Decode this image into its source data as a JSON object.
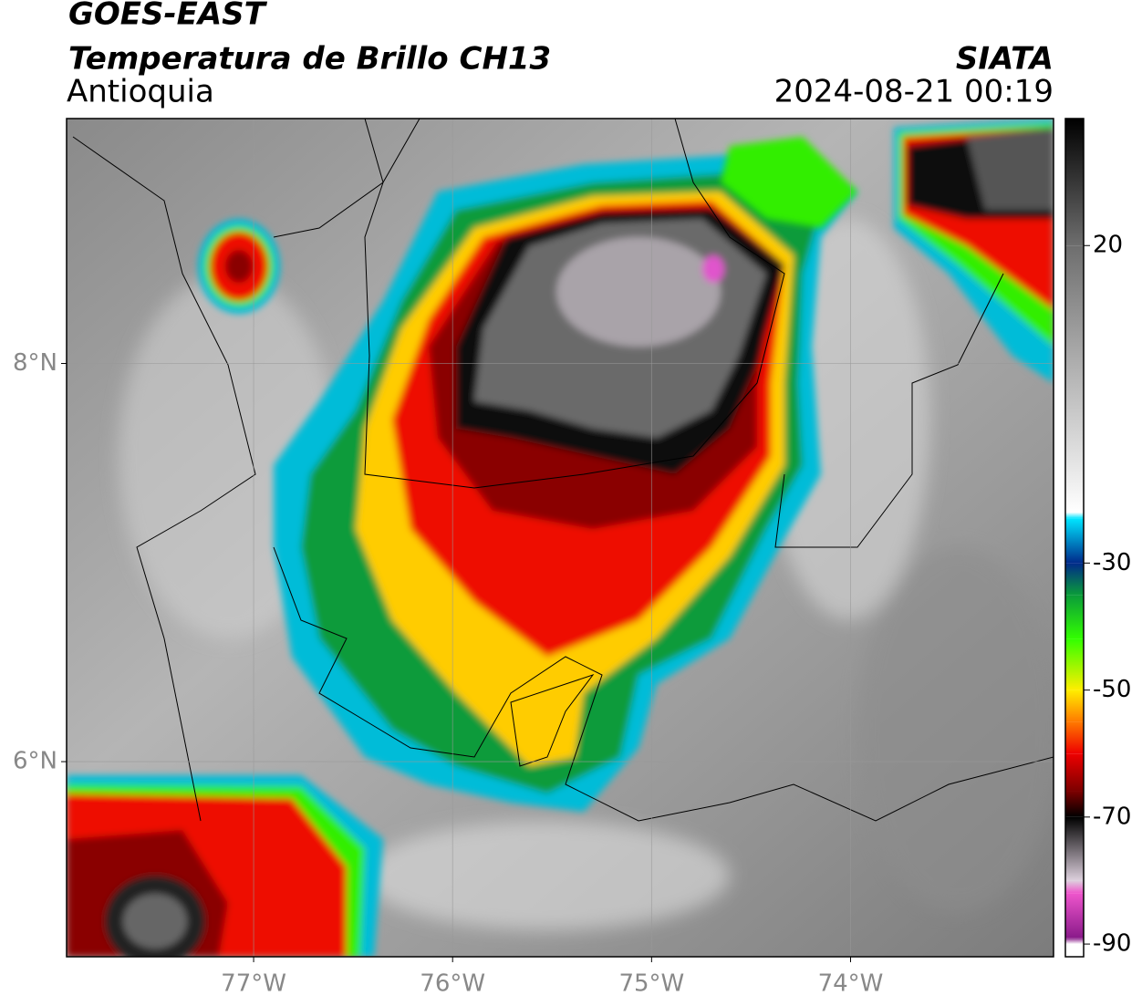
{
  "header": {
    "title": "GOES-EAST",
    "subtitle": "Temperatura de Brillo CH13",
    "region": "Antioquia",
    "source": "SIATA",
    "datetime": "2024-08-21 00:19"
  },
  "map": {
    "xlim": [
      -77.94,
      -72.98
    ],
    "ylim": [
      5.02,
      9.23
    ],
    "xticks": [
      {
        "value": -77,
        "label": "77°W"
      },
      {
        "value": -76,
        "label": "76°W"
      },
      {
        "value": -75,
        "label": "75°W"
      },
      {
        "value": -74,
        "label": "74°W"
      }
    ],
    "yticks": [
      {
        "value": 6,
        "label": "6°N"
      },
      {
        "value": 8,
        "label": "8°N"
      }
    ],
    "grid": true
  },
  "colorbar": {
    "lim": [
      -92,
      40
    ],
    "ticks": [
      20,
      -30,
      -50,
      -70,
      -90
    ],
    "stops": [
      {
        "value": 40,
        "color": "#000000"
      },
      {
        "value": 20,
        "color": "#6e6e6e"
      },
      {
        "value": -22,
        "color": "#ffffff"
      },
      {
        "value": -23,
        "color": "#00e5ff"
      },
      {
        "value": -30,
        "color": "#002a8a"
      },
      {
        "value": -35,
        "color": "#0a9b3a"
      },
      {
        "value": -42,
        "color": "#33ff00"
      },
      {
        "value": -50,
        "color": "#ffee00"
      },
      {
        "value": -55,
        "color": "#ff7a00"
      },
      {
        "value": -60,
        "color": "#ee0000"
      },
      {
        "value": -66,
        "color": "#7a0000"
      },
      {
        "value": -70,
        "color": "#000000"
      },
      {
        "value": -80,
        "color": "#ddd0dd"
      },
      {
        "value": -82,
        "color": "#ee55cc"
      },
      {
        "value": -89,
        "color": "#8a1a8a"
      },
      {
        "value": -90,
        "color": "#ffffff"
      },
      {
        "value": -92,
        "color": "#ffffff"
      }
    ]
  }
}
